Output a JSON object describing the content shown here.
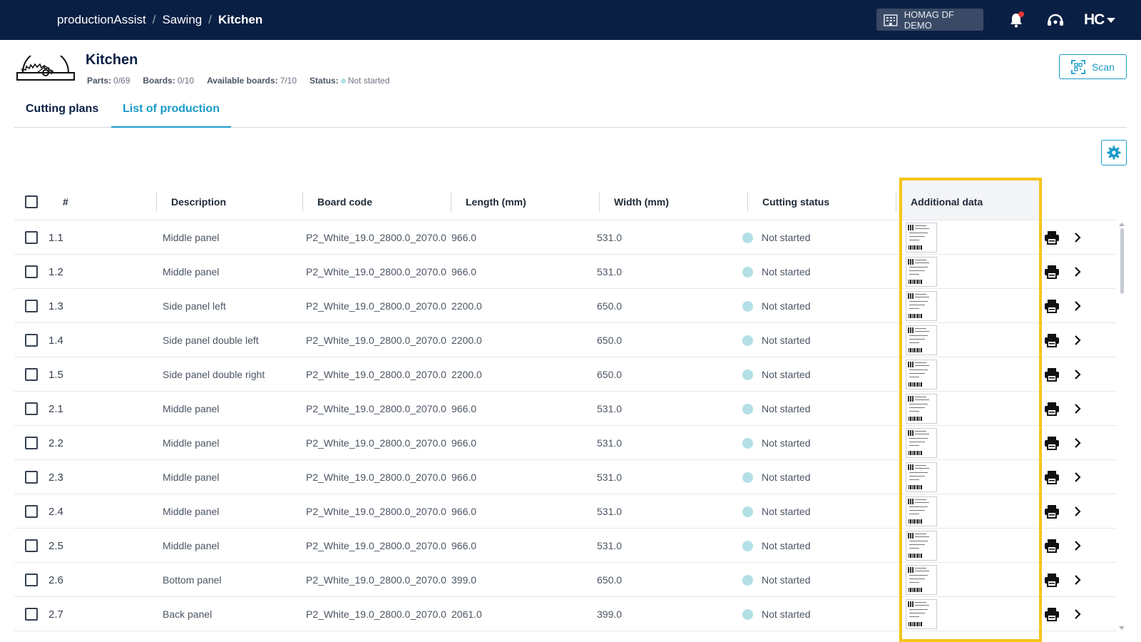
{
  "topbar": {
    "breadcrumb": [
      "productionAssist",
      "Sawing",
      "Kitchen"
    ],
    "tenant_label": "HOMAG DF DEMO",
    "logo_text": "HC",
    "icons": [
      "building-icon",
      "bell-icon",
      "support-icon",
      "chevron-down-icon"
    ]
  },
  "header": {
    "title": "Kitchen",
    "parts_label": "Parts:",
    "parts_value": "0/69",
    "boards_label": "Boards:",
    "boards_value": "0/10",
    "available_label": "Available boards:",
    "available_value": "7/10",
    "status_label": "Status:",
    "status_value": "Not started",
    "scan_label": "Scan"
  },
  "tabs": [
    {
      "label": "Cutting plans",
      "active": false
    },
    {
      "label": "List of production",
      "active": true
    }
  ],
  "table": {
    "columns": {
      "number": "#",
      "description": "Description",
      "board_code": "Board code",
      "length": "Length (mm)",
      "width": "Width (mm)",
      "cutting_status": "Cutting status",
      "additional_data": "Additional data"
    },
    "rows": [
      {
        "num": "1.1",
        "description": "Middle panel",
        "board_code": "P2_White_19.0_2800.0_2070.0",
        "length": "966.0",
        "width": "531.0",
        "status": "Not started"
      },
      {
        "num": "1.2",
        "description": "Middle panel",
        "board_code": "P2_White_19.0_2800.0_2070.0",
        "length": "966.0",
        "width": "531.0",
        "status": "Not started"
      },
      {
        "num": "1.3",
        "description": "Side panel left",
        "board_code": "P2_White_19.0_2800.0_2070.0",
        "length": "2200.0",
        "width": "650.0",
        "status": "Not started"
      },
      {
        "num": "1.4",
        "description": "Side panel double left",
        "board_code": "P2_White_19.0_2800.0_2070.0",
        "length": "2200.0",
        "width": "650.0",
        "status": "Not started"
      },
      {
        "num": "1.5",
        "description": "Side panel double right",
        "board_code": "P2_White_19.0_2800.0_2070.0",
        "length": "2200.0",
        "width": "650.0",
        "status": "Not started"
      },
      {
        "num": "2.1",
        "description": "Middle panel",
        "board_code": "P2_White_19.0_2800.0_2070.0",
        "length": "966.0",
        "width": "531.0",
        "status": "Not started"
      },
      {
        "num": "2.2",
        "description": "Middle panel",
        "board_code": "P2_White_19.0_2800.0_2070.0",
        "length": "966.0",
        "width": "531.0",
        "status": "Not started"
      },
      {
        "num": "2.3",
        "description": "Middle panel",
        "board_code": "P2_White_19.0_2800.0_2070.0",
        "length": "966.0",
        "width": "531.0",
        "status": "Not started"
      },
      {
        "num": "2.4",
        "description": "Middle panel",
        "board_code": "P2_White_19.0_2800.0_2070.0",
        "length": "966.0",
        "width": "531.0",
        "status": "Not started"
      },
      {
        "num": "2.5",
        "description": "Middle panel",
        "board_code": "P2_White_19.0_2800.0_2070.0",
        "length": "966.0",
        "width": "531.0",
        "status": "Not started"
      },
      {
        "num": "2.6",
        "description": "Bottom panel",
        "board_code": "P2_White_19.0_2800.0_2070.0",
        "length": "399.0",
        "width": "650.0",
        "status": "Not started"
      },
      {
        "num": "2.7",
        "description": "Back panel",
        "board_code": "P2_White_19.0_2800.0_2070.0",
        "length": "2061.0",
        "width": "399.0",
        "status": "Not started"
      }
    ]
  },
  "colors": {
    "topbar": "#0a1f44",
    "accent": "#1a9bc9",
    "status_not_started": "#b3dfe6",
    "highlight": "#f5c518"
  }
}
